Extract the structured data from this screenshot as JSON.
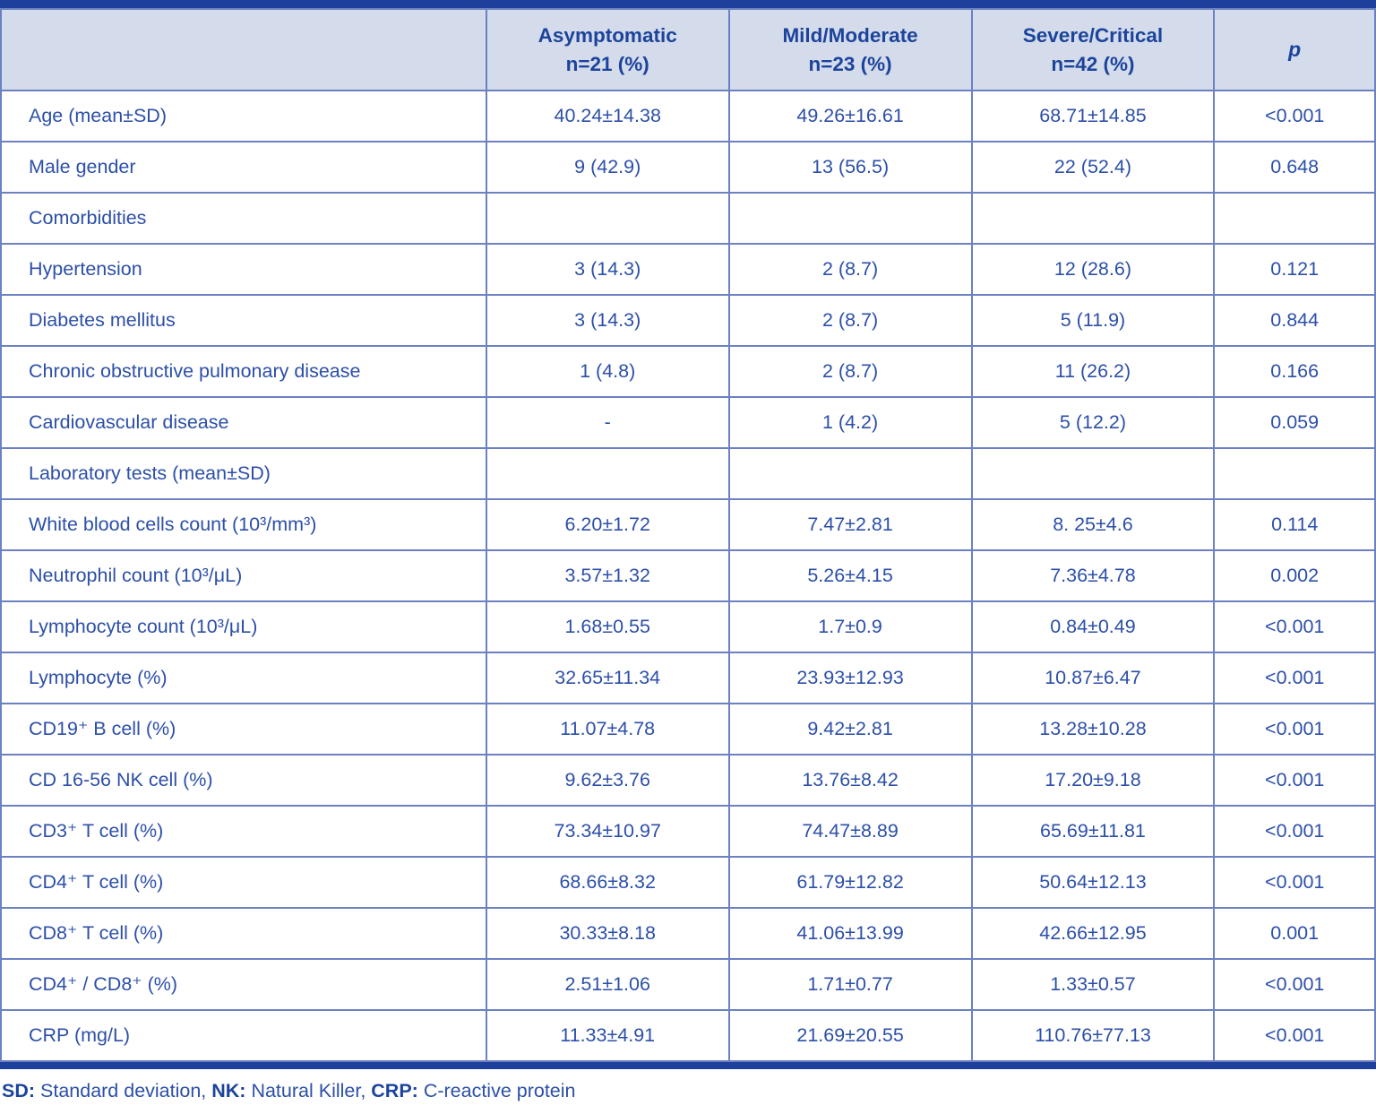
{
  "table": {
    "header": [
      "",
      "Asymptomatic\nn=21 (%)",
      "Mild/Moderate\nn=23 (%)",
      "Severe/Critical\nn=42 (%)",
      "p"
    ],
    "rows": [
      {
        "label": "Age (mean±SD)",
        "values": [
          "40.24±14.38",
          "49.26±16.61",
          "68.71±14.85",
          "<0.001"
        ]
      },
      {
        "label": "Male gender",
        "values": [
          "9 (42.9)",
          "13 (56.5)",
          "22 (52.4)",
          "0.648"
        ]
      },
      {
        "label": "Comorbidities",
        "values": [
          "",
          "",
          "",
          ""
        ]
      },
      {
        "label": "Hypertension",
        "values": [
          "3 (14.3)",
          "2 (8.7)",
          "12 (28.6)",
          "0.121"
        ]
      },
      {
        "label": "Diabetes mellitus",
        "values": [
          "3 (14.3)",
          "2 (8.7)",
          "5 (11.9)",
          "0.844"
        ]
      },
      {
        "label": "Chronic obstructive pulmonary disease",
        "values": [
          "1 (4.8)",
          "2 (8.7)",
          "11 (26.2)",
          "0.166"
        ]
      },
      {
        "label": "Cardiovascular disease",
        "values": [
          "-",
          "1 (4.2)",
          "5 (12.2)",
          "0.059"
        ]
      },
      {
        "label": "Laboratory tests (mean±SD)",
        "values": [
          "",
          "",
          "",
          ""
        ]
      },
      {
        "label": "White blood cells count (10³/mm³)",
        "values": [
          "6.20±1.72",
          "7.47±2.81",
          "8. 25±4.6",
          "0.114"
        ]
      },
      {
        "label": "Neutrophil count (10³/μL)",
        "values": [
          "3.57±1.32",
          "5.26±4.15",
          "7.36±4.78",
          "0.002"
        ]
      },
      {
        "label": "Lymphocyte count (10³/μL)",
        "values": [
          "1.68±0.55",
          "1.7±0.9",
          "0.84±0.49",
          "<0.001"
        ]
      },
      {
        "label": "Lymphocyte (%)",
        "values": [
          "32.65±11.34",
          "23.93±12.93",
          "10.87±6.47",
          "<0.001"
        ]
      },
      {
        "label": "CD19⁺ B cell (%)",
        "values": [
          "11.07±4.78",
          "9.42±2.81",
          "13.28±10.28",
          "<0.001"
        ]
      },
      {
        "label": "CD 16-56 NK cell (%)",
        "values": [
          "9.62±3.76",
          "13.76±8.42",
          "17.20±9.18",
          "<0.001"
        ]
      },
      {
        "label": "CD3⁺ T cell (%)",
        "values": [
          "73.34±10.97",
          "74.47±8.89",
          "65.69±11.81",
          "<0.001"
        ]
      },
      {
        "label": "CD4⁺ T cell (%)",
        "values": [
          "68.66±8.32",
          "61.79±12.82",
          "50.64±12.13",
          "<0.001"
        ]
      },
      {
        "label": "CD8⁺ T cell (%)",
        "values": [
          "30.33±8.18",
          "41.06±13.99",
          "42.66±12.95",
          "0.001"
        ]
      },
      {
        "label": "CD4⁺ / CD8⁺ (%)",
        "values": [
          "2.51±1.06",
          "1.71±0.77",
          "1.33±0.57",
          "<0.001"
        ]
      },
      {
        "label": "CRP (mg/L)",
        "values": [
          "11.33±4.91",
          "21.69±20.55",
          "110.76±77.13",
          "<0.001"
        ]
      }
    ]
  },
  "footnote": {
    "sd_label": "SD:",
    "sd_text": " Standard deviation, ",
    "nk_label": "NK:",
    "nk_text": " Natural Killer, ",
    "crp_label": "CRP:",
    "crp_text": " C-reactive protein"
  },
  "colors": {
    "accent_dark_blue": "#1e3f9c",
    "header_bg": "#d4dbea",
    "border_blue": "#6b81c2",
    "text_blue": "#2c4fa8"
  }
}
